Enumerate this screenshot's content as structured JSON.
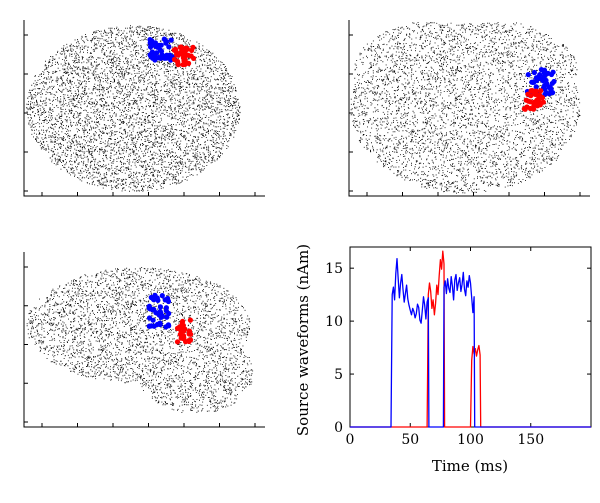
{
  "figure": {
    "panels": [
      {
        "view": "top",
        "cloud": "brain-cloud-top",
        "blue": "blue-source-top",
        "red": "red-source-top"
      },
      {
        "view": "back",
        "cloud": "brain-cloud-back",
        "blue": "blue-source-back",
        "red": "red-source-back"
      },
      {
        "view": "side",
        "cloud": "brain-cloud-side",
        "blue": "blue-source-side",
        "red": "red-source-side"
      }
    ]
  },
  "colors": {
    "blue": "#0000ff",
    "red": "#ff0000",
    "cloud": "#000000",
    "axis": "#000000"
  },
  "chart_data": {
    "type": "line",
    "title": "",
    "xlabel": "Time (ms)",
    "ylabel": "Source waveforms (nAm)",
    "xlim": [
      0,
      200
    ],
    "ylim": [
      0,
      17
    ],
    "xticks": [
      0,
      50,
      100,
      150
    ],
    "yticks": [
      0,
      5,
      10,
      15
    ],
    "grid": false,
    "legend": "none",
    "series": [
      {
        "color": "#0000ff",
        "x": [
          0,
          34,
          35,
          36,
          37,
          38,
          39,
          40,
          41,
          42,
          43,
          44,
          45,
          46,
          47,
          48,
          49,
          50,
          51,
          52,
          53,
          54,
          55,
          56,
          57,
          58,
          59,
          60,
          61,
          62,
          63,
          64,
          65,
          65.5,
          66,
          67,
          68,
          69,
          70,
          71,
          72,
          73,
          74,
          75,
          76,
          77,
          77.5,
          78,
          79,
          80,
          81,
          82,
          83,
          84,
          85,
          86,
          87,
          88,
          89,
          90,
          91,
          92,
          93,
          94,
          95,
          96,
          97,
          98,
          99,
          100,
          101,
          102,
          103,
          103.5,
          104,
          200
        ],
        "y": [
          0,
          0,
          12.5,
          13.2,
          12.0,
          14.5,
          15.9,
          14.0,
          12.2,
          13.6,
          14.4,
          13.0,
          11.8,
          12.6,
          13.4,
          12.1,
          11.5,
          11.0,
          10.6,
          11.2,
          10.9,
          10.3,
          10.7,
          11.6,
          11.3,
          10.1,
          9.8,
          11.0,
          12.3,
          11.5,
          10.2,
          11.8,
          12.2,
          0,
          0,
          0,
          0,
          0,
          0,
          0,
          0,
          0,
          0,
          0,
          0,
          0,
          0,
          13.2,
          13.8,
          12.6,
          14.0,
          13.1,
          12.7,
          14.2,
          13.3,
          12.0,
          13.9,
          14.4,
          12.9,
          13.6,
          14.1,
          12.8,
          13.5,
          14.6,
          13.0,
          12.4,
          13.8,
          13.2,
          14.3,
          13.6,
          12.2,
          10.8,
          12.3,
          0,
          0,
          0
        ]
      },
      {
        "color": "#ff0000",
        "x": [
          0,
          64,
          64.5,
          65,
          66,
          67,
          68,
          69,
          70,
          71,
          72,
          73,
          74,
          75,
          76,
          77,
          78,
          78.5,
          79,
          100,
          101,
          102,
          103,
          104,
          105,
          106,
          107,
          108,
          108.5,
          109,
          200
        ],
        "y": [
          0,
          0,
          6.0,
          12.5,
          13.6,
          12.8,
          11.2,
          12.0,
          10.6,
          11.7,
          13.4,
          12.5,
          14.3,
          15.8,
          14.9,
          16.6,
          15.4,
          0,
          0,
          0,
          6.3,
          7.6,
          6.9,
          7.4,
          6.7,
          7.3,
          7.7,
          6.8,
          0,
          0,
          0
        ]
      }
    ]
  }
}
